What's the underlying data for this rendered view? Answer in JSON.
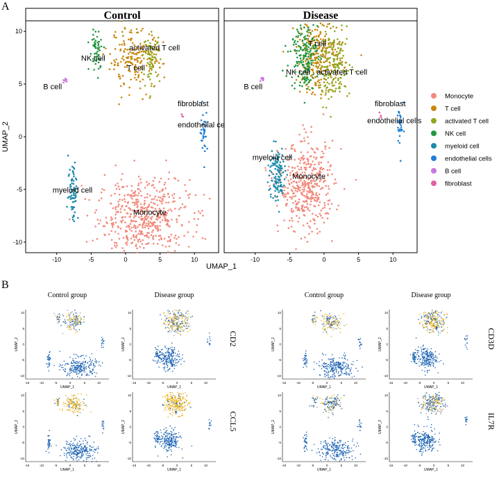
{
  "panel_labels": {
    "a": "A",
    "b": "B"
  },
  "chart_data": [
    {
      "type": "scatter",
      "title": "Control",
      "xlabel": "UMAP_1",
      "ylabel": "UMAP_2",
      "xlim": [
        -14.5,
        13.5
      ],
      "ylim": [
        -11,
        11
      ],
      "x_ticks": [
        -10,
        -5,
        0,
        5,
        10
      ],
      "y_ticks": [
        10,
        5,
        0,
        -5,
        -10
      ],
      "clusters": [
        {
          "label": "Monocyte",
          "color": "#F28A7C",
          "cx": 2.6,
          "cy": -7.6,
          "sx": 3.3,
          "sy": 1.8,
          "n": 520
        },
        {
          "label": "T cell",
          "color": "#C8870E",
          "cx": 1.4,
          "cy": 7.3,
          "sx": 2.0,
          "sy": 1.4,
          "n": 200
        },
        {
          "label": "activated T cell",
          "color": "#8CA81E",
          "cx": 3.8,
          "cy": 7.5,
          "sx": 0.6,
          "sy": 1.1,
          "n": 60
        },
        {
          "label": "NK cell",
          "color": "#22963E",
          "cx": -4.2,
          "cy": 8.2,
          "sx": 0.5,
          "sy": 1.0,
          "n": 55
        },
        {
          "label": "myeloid cell",
          "color": "#1A8AAA",
          "cx": -7.6,
          "cy": -5.0,
          "sx": 0.35,
          "sy": 1.5,
          "n": 70
        },
        {
          "label": "endothelial cells",
          "color": "#1E7FD6",
          "cx": 11.4,
          "cy": 0.5,
          "sx": 0.25,
          "sy": 1.0,
          "n": 35
        },
        {
          "label": "B cell",
          "color": "#C777DF",
          "cx": -8.8,
          "cy": 5.4,
          "sx": 0.15,
          "sy": 0.15,
          "n": 8
        },
        {
          "label": "fibroblast",
          "color": "#E25FA6",
          "cx": 8.2,
          "cy": 2.0,
          "sx": 0.1,
          "sy": 0.1,
          "n": 4
        }
      ],
      "cluster_labels": [
        {
          "text": "NK cell",
          "x": -4.7,
          "y": 7.2
        },
        {
          "text": "activated T cell",
          "x": 4.2,
          "y": 8.2
        },
        {
          "text": "T cell",
          "x": 1.5,
          "y": 6.3
        },
        {
          "text": "B cell",
          "x": -10.6,
          "y": 4.5
        },
        {
          "text": "fibroblast",
          "x": 9.8,
          "y": 2.9
        },
        {
          "text": "endothelial cells",
          "x": 11.5,
          "y": 0.9
        },
        {
          "text": "myeloid cell",
          "x": -7.7,
          "y": -5.3
        },
        {
          "text": "Monocyte",
          "x": 3.5,
          "y": -7.4
        }
      ]
    },
    {
      "type": "scatter",
      "title": "Disease",
      "xlabel": "UMAP_1",
      "ylabel": "UMAP_2",
      "xlim": [
        -14.5,
        13.5
      ],
      "ylim": [
        -11,
        11
      ],
      "x_ticks": [
        -10,
        -5,
        0,
        5,
        10
      ],
      "y_ticks": [],
      "clusters": [
        {
          "label": "Monocyte",
          "color": "#F28A7C",
          "cx": -2.5,
          "cy": -4.8,
          "sx": 2.0,
          "sy": 2.1,
          "n": 430
        },
        {
          "label": "T cell",
          "color": "#C8870E",
          "cx": -0.7,
          "cy": 7.6,
          "sx": 1.7,
          "sy": 1.8,
          "n": 260
        },
        {
          "label": "activated T cell",
          "color": "#8CA81E",
          "cx": 1.4,
          "cy": 6.6,
          "sx": 1.3,
          "sy": 1.6,
          "n": 160
        },
        {
          "label": "NK cell",
          "color": "#22963E",
          "cx": -2.9,
          "cy": 7.8,
          "sx": 1.0,
          "sy": 1.6,
          "n": 180
        },
        {
          "label": "myeloid cell",
          "color": "#1A8AAA",
          "cx": -6.9,
          "cy": -3.6,
          "sx": 0.6,
          "sy": 1.4,
          "n": 120
        },
        {
          "label": "endothelial cells",
          "color": "#1E7FD6",
          "cx": 11.2,
          "cy": 1.0,
          "sx": 0.3,
          "sy": 1.2,
          "n": 30
        },
        {
          "label": "B cell",
          "color": "#C777DF",
          "cx": -8.9,
          "cy": 5.5,
          "sx": 0.15,
          "sy": 0.15,
          "n": 8
        },
        {
          "label": "fibroblast",
          "color": "#E25FA6",
          "cx": 8.2,
          "cy": 2.0,
          "sx": 0.1,
          "sy": 0.1,
          "n": 4
        }
      ],
      "cluster_labels": [
        {
          "text": "T cell",
          "x": -1.0,
          "y": 8.6
        },
        {
          "text": "NK cell",
          "x": -3.8,
          "y": 5.9
        },
        {
          "text": "activated T cell",
          "x": 2.6,
          "y": 5.9
        },
        {
          "text": "B cell",
          "x": -10.3,
          "y": 4.5
        },
        {
          "text": "fibroblast",
          "x": 9.6,
          "y": 2.9
        },
        {
          "text": "endothelial cells",
          "x": 10.2,
          "y": 1.3
        },
        {
          "text": "myeloid cell",
          "x": -7.5,
          "y": -2.2
        },
        {
          "text": "Monocyte",
          "x": -2.2,
          "y": -4.0
        }
      ]
    }
  ],
  "legend": [
    {
      "label": "Monocyte",
      "color": "#F28A7C"
    },
    {
      "label": "T cell",
      "color": "#C8870E"
    },
    {
      "label": "activated T cell",
      "color": "#8CA81E"
    },
    {
      "label": "NK cell",
      "color": "#22963E"
    },
    {
      "label": "myeloid cell",
      "color": "#1A8AAA"
    },
    {
      "label": "endothelial cells",
      "color": "#1E7FD6"
    },
    {
      "label": "B cell",
      "color": "#C777DF"
    },
    {
      "label": "fibroblast",
      "color": "#E25FA6"
    }
  ],
  "feature_plots": {
    "xlabel": "UMAP_1",
    "ylabel": "UMAP_2",
    "x_ticks": [
      -15,
      -10,
      -5,
      0,
      5,
      10
    ],
    "y_ticks": [
      10,
      5,
      0,
      -5,
      -10
    ],
    "low_color": "#1E64B4",
    "high_color": "#E8B21E",
    "titles": [
      "Control group",
      "Disease group",
      "Control group",
      "Disease group"
    ],
    "genes": [
      {
        "gene": "CD2",
        "control_expr": 0.35,
        "disease_expr": 0.45
      },
      {
        "gene": "CD3D",
        "control_expr": 0.45,
        "disease_expr": 0.55
      },
      {
        "gene": "CCL5",
        "control_expr": 0.75,
        "disease_expr": 0.85
      },
      {
        "gene": "IL7R",
        "control_expr": 0.25,
        "disease_expr": 0.3
      }
    ]
  }
}
